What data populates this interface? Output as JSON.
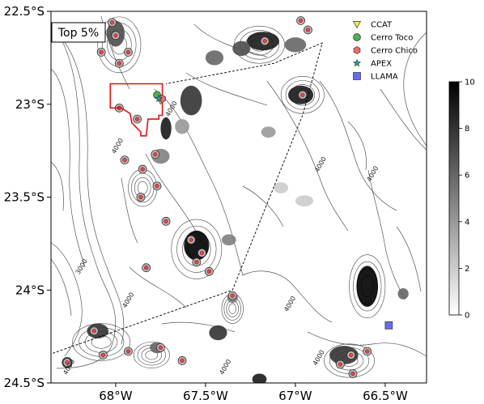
{
  "panel_label": "Top 5%",
  "axes": {
    "x_ticks": [
      {
        "value": -68.0,
        "label": "68°W"
      },
      {
        "value": -67.5,
        "label": "67.5°W"
      },
      {
        "value": -67.0,
        "label": "67°W"
      },
      {
        "value": -66.5,
        "label": "66.5°W"
      }
    ],
    "y_ticks": [
      {
        "value": -22.5,
        "label": "22.5°S"
      },
      {
        "value": -23.0,
        "label": "23°S"
      },
      {
        "value": -23.5,
        "label": "23.5°S"
      },
      {
        "value": -24.0,
        "label": "24°S"
      },
      {
        "value": -24.5,
        "label": "24.5°S"
      }
    ],
    "xlim": [
      -68.36,
      -66.27
    ],
    "ylim": [
      -24.5,
      -22.5
    ]
  },
  "legend": {
    "placement": "top-right",
    "items": [
      {
        "label": "CCAT",
        "marker": "triangle-down",
        "color": "#f2e84b"
      },
      {
        "label": "Cerro Toco",
        "marker": "circle",
        "color": "#4caf50"
      },
      {
        "label": "Cerro Chico",
        "marker": "hexagon",
        "color": "#f06a6a"
      },
      {
        "label": "APEX",
        "marker": "star",
        "color": "#1aa39a"
      },
      {
        "label": "LLAMA",
        "marker": "square",
        "color": "#6a6af0"
      }
    ]
  },
  "colorbar": {
    "range": [
      0,
      10
    ],
    "ticks": [
      {
        "value": 0,
        "label": "0"
      },
      {
        "value": 2,
        "label": "2"
      },
      {
        "value": 4,
        "label": "4"
      },
      {
        "value": 6,
        "label": "6"
      },
      {
        "value": 8,
        "label": "8"
      },
      {
        "value": 10,
        "label": "10"
      }
    ],
    "colormap": "grey-white-to-black"
  },
  "contour_labels": [
    {
      "label": "4000",
      "lon": -67.68,
      "lat": -23.03
    },
    {
      "label": "4000",
      "lon": -67.98,
      "lat": -23.23
    },
    {
      "label": "4000",
      "lon": -66.85,
      "lat": -23.33
    },
    {
      "label": "4000",
      "lon": -66.56,
      "lat": -23.38
    },
    {
      "label": "3000",
      "lon": -68.18,
      "lat": -23.88
    },
    {
      "label": "4000",
      "lon": -67.92,
      "lat": -24.06
    },
    {
      "label": "4000",
      "lon": -67.02,
      "lat": -24.08
    },
    {
      "label": "4000",
      "lon": -68.25,
      "lat": -24.42
    },
    {
      "label": "4000",
      "lon": -67.38,
      "lat": -24.42
    },
    {
      "label": "4000",
      "lon": -66.86,
      "lat": -24.37
    }
  ],
  "sites": [
    {
      "name": "CCAT",
      "lon": -67.75,
      "lat": -22.98
    },
    {
      "name": "Cerro Toco",
      "lon": -67.77,
      "lat": -22.95
    },
    {
      "name": "Cerro Chico",
      "lon": -67.74,
      "lat": -22.97
    },
    {
      "name": "APEX",
      "lon": -67.76,
      "lat": -22.97
    },
    {
      "name": "LLAMA",
      "lon": -66.48,
      "lat": -24.19
    }
  ],
  "red_region": [
    [
      -68.03,
      -22.89
    ],
    [
      -67.74,
      -22.89
    ],
    [
      -67.74,
      -23.06
    ],
    [
      -67.76,
      -23.06
    ],
    [
      -67.76,
      -23.08
    ],
    [
      -67.82,
      -23.08
    ],
    [
      -67.83,
      -23.17
    ],
    [
      -67.86,
      -23.17
    ],
    [
      -67.86,
      -23.15
    ],
    [
      -67.91,
      -23.1
    ],
    [
      -67.92,
      -23.05
    ],
    [
      -67.97,
      -23.02
    ],
    [
      -68.03,
      -23.02
    ],
    [
      -68.03,
      -22.89
    ]
  ],
  "dashed_line": [
    [
      -68.35,
      -24.34
    ],
    [
      -67.35,
      -24.0
    ],
    [
      -66.96,
      -23.06
    ],
    [
      -66.85,
      -22.67
    ],
    [
      -67.12,
      -22.78
    ],
    [
      -67.72,
      -22.89
    ]
  ],
  "shaded_patches": [
    {
      "lon": -67.18,
      "lat": -22.66,
      "rx": 0.09,
      "ry": 0.05,
      "v": 9
    },
    {
      "lon": -67.3,
      "lat": -22.7,
      "rx": 0.05,
      "ry": 0.04,
      "v": 7
    },
    {
      "lon": -67.0,
      "lat": -22.68,
      "rx": 0.06,
      "ry": 0.04,
      "v": 6
    },
    {
      "lon": -66.97,
      "lat": -22.95,
      "rx": 0.07,
      "ry": 0.05,
      "v": 9
    },
    {
      "lon": -67.58,
      "lat": -22.98,
      "rx": 0.06,
      "ry": 0.08,
      "v": 8
    },
    {
      "lon": -67.45,
      "lat": -22.75,
      "rx": 0.05,
      "ry": 0.04,
      "v": 6
    },
    {
      "lon": -67.72,
      "lat": -23.13,
      "rx": 0.03,
      "ry": 0.06,
      "v": 9
    },
    {
      "lon": -67.63,
      "lat": -23.12,
      "rx": 0.04,
      "ry": 0.04,
      "v": 4
    },
    {
      "lon": -67.75,
      "lat": -23.28,
      "rx": 0.05,
      "ry": 0.04,
      "v": 5
    },
    {
      "lon": -67.15,
      "lat": -23.15,
      "rx": 0.04,
      "ry": 0.03,
      "v": 4
    },
    {
      "lon": -67.55,
      "lat": -23.76,
      "rx": 0.07,
      "ry": 0.08,
      "v": 10
    },
    {
      "lon": -67.37,
      "lat": -23.73,
      "rx": 0.04,
      "ry": 0.03,
      "v": 5
    },
    {
      "lon": -67.43,
      "lat": -24.23,
      "rx": 0.05,
      "ry": 0.04,
      "v": 8
    },
    {
      "lon": -67.35,
      "lat": -24.04,
      "rx": 0.03,
      "ry": 0.03,
      "v": 5
    },
    {
      "lon": -66.6,
      "lat": -23.98,
      "rx": 0.06,
      "ry": 0.11,
      "v": 10
    },
    {
      "lon": -66.4,
      "lat": -24.02,
      "rx": 0.03,
      "ry": 0.03,
      "v": 6
    },
    {
      "lon": -66.73,
      "lat": -24.35,
      "rx": 0.08,
      "ry": 0.05,
      "v": 8
    },
    {
      "lon": -68.1,
      "lat": -24.22,
      "rx": 0.06,
      "ry": 0.04,
      "v": 8
    },
    {
      "lon": -68.27,
      "lat": -24.39,
      "rx": 0.03,
      "ry": 0.03,
      "v": 8
    },
    {
      "lon": -67.77,
      "lat": -24.31,
      "rx": 0.04,
      "ry": 0.03,
      "v": 6
    },
    {
      "lon": -68.0,
      "lat": -22.62,
      "rx": 0.05,
      "ry": 0.07,
      "v": 7
    },
    {
      "lon": -67.2,
      "lat": -24.48,
      "rx": 0.04,
      "ry": 0.03,
      "v": 9
    },
    {
      "lon": -66.95,
      "lat": -23.52,
      "rx": 0.05,
      "ry": 0.03,
      "v": 2
    },
    {
      "lon": -67.08,
      "lat": -23.45,
      "rx": 0.04,
      "ry": 0.03,
      "v": 2
    }
  ],
  "peaks": [
    {
      "lon": -68.02,
      "lat": -22.56
    },
    {
      "lon": -68.0,
      "lat": -22.63
    },
    {
      "lon": -67.98,
      "lat": -22.78
    },
    {
      "lon": -68.08,
      "lat": -22.72
    },
    {
      "lon": -67.93,
      "lat": -22.72
    },
    {
      "lon": -66.97,
      "lat": -22.55
    },
    {
      "lon": -66.93,
      "lat": -22.6
    },
    {
      "lon": -67.17,
      "lat": -22.66
    },
    {
      "lon": -66.96,
      "lat": -22.95
    },
    {
      "lon": -67.88,
      "lat": -23.08
    },
    {
      "lon": -67.85,
      "lat": -23.35
    },
    {
      "lon": -67.78,
      "lat": -23.27
    },
    {
      "lon": -67.95,
      "lat": -23.3
    },
    {
      "lon": -67.77,
      "lat": -23.44
    },
    {
      "lon": -67.86,
      "lat": -23.5
    },
    {
      "lon": -67.72,
      "lat": -23.63
    },
    {
      "lon": -67.58,
      "lat": -23.73
    },
    {
      "lon": -67.52,
      "lat": -23.8
    },
    {
      "lon": -67.55,
      "lat": -23.85
    },
    {
      "lon": -67.48,
      "lat": -23.9
    },
    {
      "lon": -67.83,
      "lat": -23.88
    },
    {
      "lon": -67.35,
      "lat": -24.03
    },
    {
      "lon": -68.12,
      "lat": -24.22
    },
    {
      "lon": -68.07,
      "lat": -24.35
    },
    {
      "lon": -67.93,
      "lat": -24.33
    },
    {
      "lon": -67.75,
      "lat": -24.31
    },
    {
      "lon": -68.27,
      "lat": -24.39
    },
    {
      "lon": -67.63,
      "lat": -24.38
    },
    {
      "lon": -66.69,
      "lat": -24.35
    },
    {
      "lon": -66.75,
      "lat": -24.4
    },
    {
      "lon": -66.6,
      "lat": -24.33
    },
    {
      "lon": -66.68,
      "lat": -24.45
    },
    {
      "lon": -67.98,
      "lat": -23.02
    }
  ],
  "contour_blobs": [
    {
      "lon": -67.55,
      "lat": -23.78,
      "rx": 0.14,
      "ry": 0.16
    },
    {
      "lon": -67.85,
      "lat": -23.45,
      "rx": 0.08,
      "ry": 0.1
    },
    {
      "lon": -68.08,
      "lat": -24.28,
      "rx": 0.16,
      "ry": 0.1
    },
    {
      "lon": -66.7,
      "lat": -24.38,
      "rx": 0.14,
      "ry": 0.09
    },
    {
      "lon": -66.6,
      "lat": -23.98,
      "rx": 0.1,
      "ry": 0.17
    },
    {
      "lon": -66.96,
      "lat": -22.95,
      "rx": 0.12,
      "ry": 0.1
    },
    {
      "lon": -67.98,
      "lat": -22.68,
      "rx": 0.12,
      "ry": 0.15
    },
    {
      "lon": -67.2,
      "lat": -22.68,
      "rx": 0.14,
      "ry": 0.1
    },
    {
      "lon": -67.35,
      "lat": -24.1,
      "rx": 0.06,
      "ry": 0.08
    },
    {
      "lon": -67.8,
      "lat": -24.35,
      "rx": 0.1,
      "ry": 0.07
    }
  ]
}
